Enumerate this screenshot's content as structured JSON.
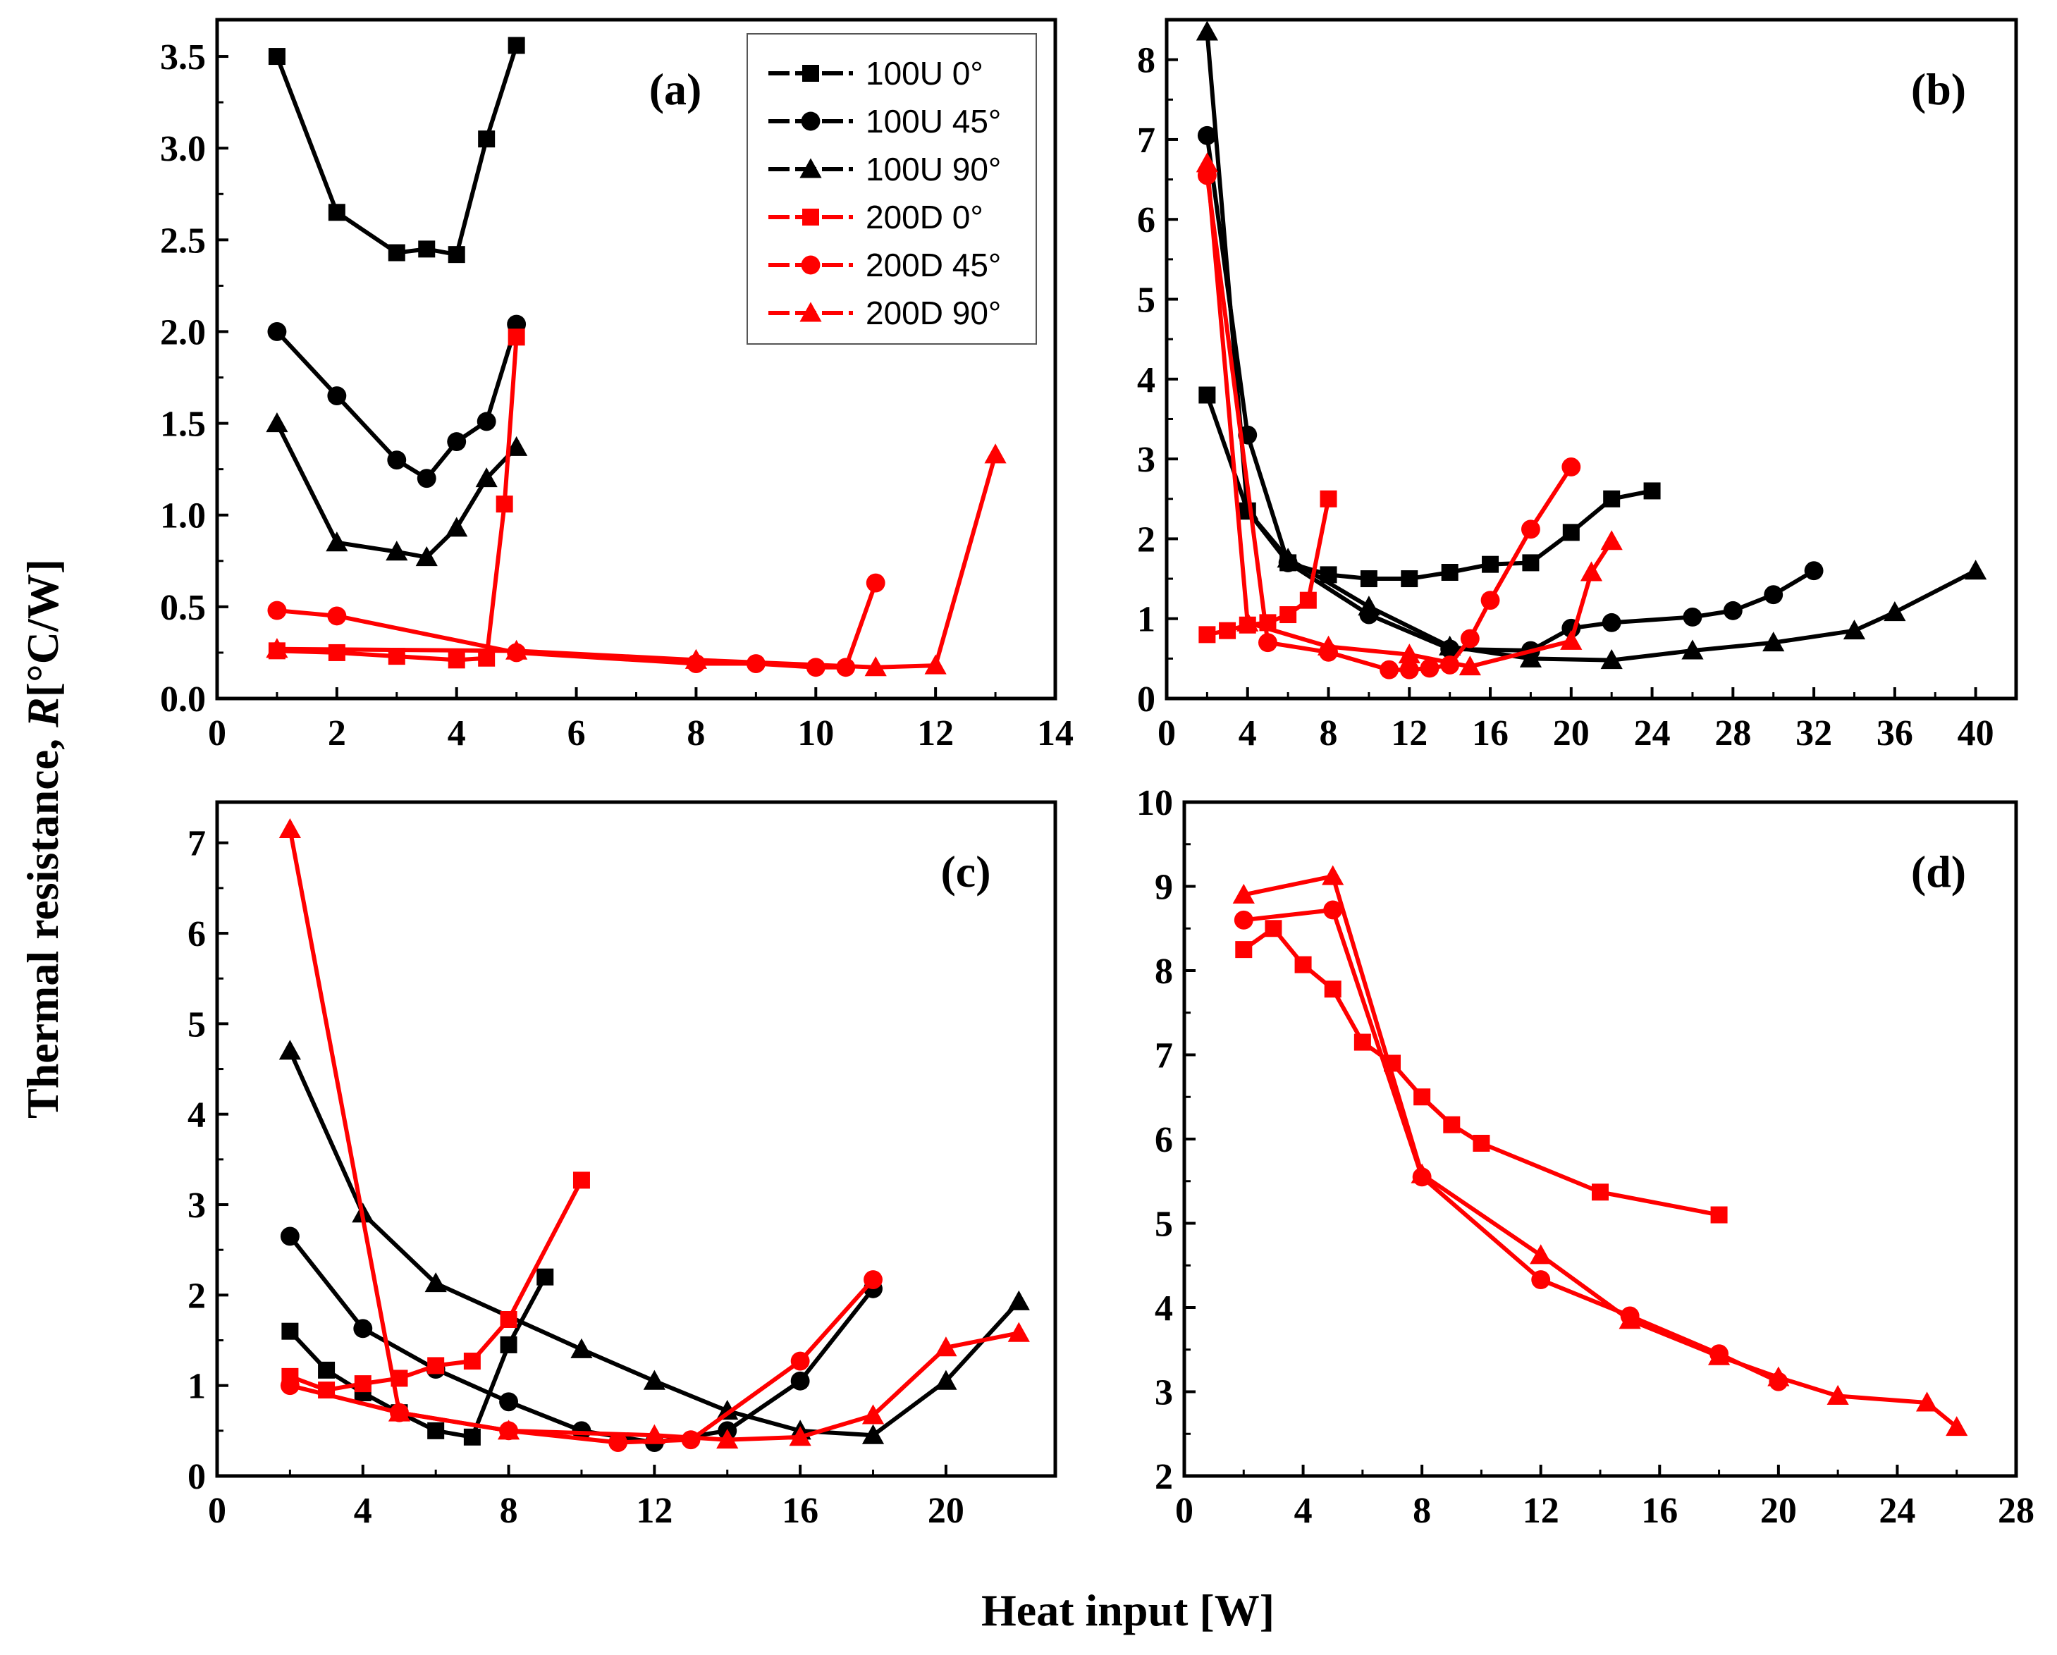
{
  "figure": {
    "ylabel_main": "Thermal resistance, ",
    "ylabel_italic": "R",
    "ylabel_unit": "[°C/W]",
    "xlabel": "Heat input [W]"
  },
  "legend": [
    {
      "label": "100U 0°",
      "color": "#000000",
      "marker": "square"
    },
    {
      "label": "100U 45°",
      "color": "#000000",
      "marker": "circle"
    },
    {
      "label": "100U 90°",
      "color": "#000000",
      "marker": "triangle"
    },
    {
      "label": "200D 0°",
      "color": "#ff0000",
      "marker": "square"
    },
    {
      "label": "200D 45°",
      "color": "#ff0000",
      "marker": "circle"
    },
    {
      "label": "200D 90°",
      "color": "#ff0000",
      "marker": "triangle"
    }
  ],
  "chart_data": [
    {
      "panel": "(a)",
      "type": "line",
      "xlim": [
        0,
        14
      ],
      "ylim": [
        0,
        3.7
      ],
      "xticks": [
        0,
        2,
        4,
        6,
        8,
        10,
        12,
        14
      ],
      "xtick_labels": [
        "0",
        "2",
        "4",
        "6",
        "8",
        "10",
        "12",
        "14"
      ],
      "yticks": [
        0,
        0.5,
        1,
        1.5,
        2,
        2.5,
        3,
        3.5
      ],
      "ytick_labels": [
        "0.0",
        "0.5",
        "1.0",
        "1.5",
        "2.0",
        "2.5",
        "3.0",
        "3.5"
      ],
      "series": [
        {
          "name": "100U 0°",
          "color": "#000000",
          "marker": "square",
          "x": [
            1,
            2,
            3,
            3.5,
            4,
            4.5,
            5
          ],
          "y": [
            3.5,
            2.65,
            2.43,
            2.45,
            2.42,
            3.05,
            3.56
          ]
        },
        {
          "name": "100U 45°",
          "color": "#000000",
          "marker": "circle",
          "x": [
            1,
            2,
            3,
            3.5,
            4,
            4.5,
            5
          ],
          "y": [
            2.0,
            1.65,
            1.3,
            1.2,
            1.4,
            1.51,
            2.04
          ]
        },
        {
          "name": "100U 90°",
          "color": "#000000",
          "marker": "triangle",
          "x": [
            1,
            2,
            3,
            3.5,
            4,
            4.5,
            5
          ],
          "y": [
            1.5,
            0.85,
            0.8,
            0.77,
            0.93,
            1.2,
            1.37
          ]
        },
        {
          "name": "200D 0°",
          "color": "#ff0000",
          "marker": "square",
          "x": [
            1,
            2,
            3,
            4,
            4.5,
            4.8,
            5
          ],
          "y": [
            0.26,
            0.25,
            0.23,
            0.21,
            0.22,
            1.06,
            1.97
          ]
        },
        {
          "name": "200D 45°",
          "color": "#ff0000",
          "marker": "circle",
          "x": [
            1,
            2,
            5,
            8,
            9,
            10,
            10.5,
            11
          ],
          "y": [
            0.48,
            0.45,
            0.25,
            0.19,
            0.19,
            0.17,
            0.17,
            0.63
          ]
        },
        {
          "name": "200D 90°",
          "color": "#ff0000",
          "marker": "triangle",
          "x": [
            1,
            5,
            8,
            11,
            12,
            13
          ],
          "y": [
            0.27,
            0.26,
            0.21,
            0.17,
            0.18,
            1.33
          ]
        }
      ]
    },
    {
      "panel": "(b)",
      "type": "line",
      "xlim": [
        0,
        42
      ],
      "ylim": [
        0,
        8.5
      ],
      "xticks": [
        0,
        4,
        8,
        12,
        16,
        20,
        24,
        28,
        32,
        36,
        40
      ],
      "xtick_labels": [
        "0",
        "4",
        "8",
        "12",
        "16",
        "20",
        "24",
        "28",
        "32",
        "36",
        "40"
      ],
      "yticks": [
        0,
        1,
        2,
        3,
        4,
        5,
        6,
        7,
        8
      ],
      "ytick_labels": [
        "0",
        "1",
        "2",
        "3",
        "4",
        "5",
        "6",
        "7",
        "8"
      ],
      "series": [
        {
          "name": "100U 0°",
          "color": "#000000",
          "marker": "square",
          "x": [
            2,
            4,
            6,
            8,
            10,
            12,
            14,
            16,
            18,
            20,
            22,
            24
          ],
          "y": [
            3.8,
            2.35,
            1.7,
            1.55,
            1.5,
            1.5,
            1.58,
            1.68,
            1.7,
            2.08,
            2.5,
            2.6
          ]
        },
        {
          "name": "100U 45°",
          "color": "#000000",
          "marker": "circle",
          "x": [
            2,
            4,
            6,
            10,
            14,
            18,
            20,
            22,
            26,
            28,
            30,
            32
          ],
          "y": [
            7.05,
            3.3,
            1.7,
            1.05,
            0.62,
            0.6,
            0.88,
            0.95,
            1.02,
            1.1,
            1.3,
            1.6
          ]
        },
        {
          "name": "100U 90°",
          "color": "#000000",
          "marker": "triangle",
          "x": [
            2,
            4,
            6,
            10,
            14,
            18,
            22,
            26,
            30,
            34,
            36,
            40
          ],
          "y": [
            8.35,
            2.35,
            1.75,
            1.15,
            0.65,
            0.5,
            0.48,
            0.6,
            0.7,
            0.85,
            1.08,
            1.6
          ]
        },
        {
          "name": "200D 0°",
          "color": "#ff0000",
          "marker": "square",
          "x": [
            2,
            3,
            4,
            5,
            6,
            7,
            8
          ],
          "y": [
            0.8,
            0.85,
            0.92,
            0.95,
            1.05,
            1.23,
            2.5
          ]
        },
        {
          "name": "200D 45°",
          "color": "#ff0000",
          "marker": "circle",
          "x": [
            2,
            5,
            8,
            11,
            12,
            13,
            14,
            15,
            16,
            18,
            20
          ],
          "y": [
            6.55,
            0.7,
            0.58,
            0.36,
            0.36,
            0.38,
            0.42,
            0.75,
            1.23,
            2.12,
            2.9
          ]
        },
        {
          "name": "200D 90°",
          "color": "#ff0000",
          "marker": "triangle",
          "x": [
            2,
            4,
            8,
            12,
            15,
            20,
            21,
            22
          ],
          "y": [
            6.7,
            0.95,
            0.65,
            0.55,
            0.4,
            0.72,
            1.58,
            1.97
          ]
        }
      ]
    },
    {
      "panel": "(c)",
      "type": "line",
      "xlim": [
        0,
        23
      ],
      "ylim": [
        0,
        7.45
      ],
      "xticks": [
        0,
        4,
        8,
        12,
        16,
        20
      ],
      "xtick_labels": [
        "0",
        "4",
        "8",
        "12",
        "16",
        "20"
      ],
      "yticks": [
        0,
        1,
        2,
        3,
        4,
        5,
        6,
        7
      ],
      "ytick_labels": [
        "0",
        "1",
        "2",
        "3",
        "4",
        "5",
        "6",
        "7"
      ],
      "series": [
        {
          "name": "100U 0°",
          "color": "#000000",
          "marker": "square",
          "x": [
            2,
            3,
            4,
            5,
            6,
            7,
            8,
            9
          ],
          "y": [
            1.6,
            1.17,
            0.92,
            0.7,
            0.5,
            0.43,
            1.45,
            2.2
          ]
        },
        {
          "name": "100U 45°",
          "color": "#000000",
          "marker": "circle",
          "x": [
            2,
            4,
            6,
            8,
            10,
            12,
            14,
            16,
            18
          ],
          "y": [
            2.65,
            1.63,
            1.18,
            0.82,
            0.5,
            0.37,
            0.5,
            1.05,
            2.07
          ]
        },
        {
          "name": "100U 90°",
          "color": "#000000",
          "marker": "triangle",
          "x": [
            2,
            4,
            6,
            10,
            12,
            14,
            16,
            18,
            20,
            22
          ],
          "y": [
            4.7,
            2.9,
            2.13,
            1.4,
            1.05,
            0.72,
            0.5,
            0.45,
            1.05,
            1.93
          ]
        },
        {
          "name": "200D 0°",
          "color": "#ff0000",
          "marker": "square",
          "x": [
            2,
            3,
            4,
            5,
            6,
            7,
            8,
            10
          ],
          "y": [
            1.1,
            0.95,
            1.02,
            1.08,
            1.22,
            1.27,
            1.73,
            3.27
          ]
        },
        {
          "name": "200D 45°",
          "color": "#ff0000",
          "marker": "circle",
          "x": [
            2,
            5,
            8,
            11,
            13,
            16,
            18
          ],
          "y": [
            1.0,
            0.7,
            0.5,
            0.37,
            0.4,
            1.27,
            2.17
          ]
        },
        {
          "name": "200D 90°",
          "color": "#ff0000",
          "marker": "triangle",
          "x": [
            2,
            5,
            8,
            12,
            14,
            16,
            18,
            20,
            22
          ],
          "y": [
            7.15,
            0.7,
            0.5,
            0.45,
            0.4,
            0.43,
            0.67,
            1.42,
            1.58
          ]
        }
      ]
    },
    {
      "panel": "(d)",
      "type": "line",
      "xlim": [
        0,
        28
      ],
      "ylim": [
        2,
        10
      ],
      "xticks": [
        0,
        4,
        8,
        12,
        16,
        20,
        24,
        28
      ],
      "xtick_labels": [
        "0",
        "4",
        "8",
        "12",
        "16",
        "20",
        "24",
        "28"
      ],
      "yticks": [
        2,
        3,
        4,
        5,
        6,
        7,
        8,
        9,
        10
      ],
      "ytick_labels": [
        "2",
        "3",
        "4",
        "5",
        "6",
        "7",
        "8",
        "9",
        "10"
      ],
      "series": [
        {
          "name": "200D 0°",
          "color": "#ff0000",
          "marker": "square",
          "x": [
            2,
            3,
            4,
            5,
            6,
            7,
            8,
            9,
            10,
            14,
            18
          ],
          "y": [
            8.25,
            8.5,
            8.07,
            7.78,
            7.15,
            6.9,
            6.5,
            6.17,
            5.95,
            5.37,
            5.1
          ]
        },
        {
          "name": "200D 45°",
          "color": "#ff0000",
          "marker": "circle",
          "x": [
            2,
            5,
            8,
            12,
            15,
            18,
            20
          ],
          "y": [
            8.6,
            8.72,
            5.55,
            4.33,
            3.9,
            3.45,
            3.12
          ]
        },
        {
          "name": "200D 90°",
          "color": "#ff0000",
          "marker": "triangle",
          "x": [
            2,
            5,
            8,
            12,
            15,
            18,
            20,
            22,
            25,
            26
          ],
          "y": [
            8.9,
            9.12,
            5.58,
            4.62,
            3.85,
            3.42,
            3.17,
            2.95,
            2.87,
            2.58
          ]
        }
      ]
    }
  ]
}
